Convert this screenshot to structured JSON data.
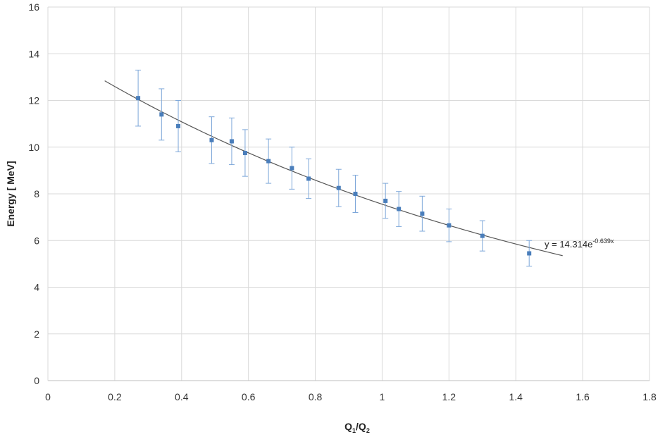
{
  "chart_data": {
    "type": "scatter",
    "xlabel": {
      "main": "Q",
      "sub1": "1",
      "sep": "/Q",
      "sub2": "2"
    },
    "ylabel": "Energy [ MeV]",
    "xlim": [
      0,
      1.8
    ],
    "ylim": [
      0,
      16
    ],
    "x_ticks": [
      "0",
      "0.2",
      "0.4",
      "0.6",
      "0.8",
      "1",
      "1.2",
      "1.4",
      "1.6",
      "1.8"
    ],
    "y_ticks": [
      "0",
      "2",
      "4",
      "6",
      "8",
      "10",
      "12",
      "14",
      "16"
    ],
    "grid": true,
    "marker_color": "#4a7ebb",
    "errorbar_color": "#7da7d9",
    "series": [
      {
        "points": [
          {
            "x": 0.27,
            "y": 12.1,
            "err": 1.2
          },
          {
            "x": 0.34,
            "y": 11.4,
            "err": 1.1
          },
          {
            "x": 0.39,
            "y": 10.9,
            "err": 1.1
          },
          {
            "x": 0.49,
            "y": 10.3,
            "err": 1.0
          },
          {
            "x": 0.55,
            "y": 10.25,
            "err": 1.0
          },
          {
            "x": 0.59,
            "y": 9.75,
            "err": 1.0
          },
          {
            "x": 0.66,
            "y": 9.4,
            "err": 0.95
          },
          {
            "x": 0.73,
            "y": 9.1,
            "err": 0.9
          },
          {
            "x": 0.78,
            "y": 8.65,
            "err": 0.85
          },
          {
            "x": 0.87,
            "y": 8.25,
            "err": 0.8
          },
          {
            "x": 0.92,
            "y": 8.0,
            "err": 0.8
          },
          {
            "x": 1.01,
            "y": 7.7,
            "err": 0.75
          },
          {
            "x": 1.05,
            "y": 7.35,
            "err": 0.75
          },
          {
            "x": 1.12,
            "y": 7.15,
            "err": 0.75
          },
          {
            "x": 1.2,
            "y": 6.65,
            "err": 0.7
          },
          {
            "x": 1.3,
            "y": 6.2,
            "err": 0.65
          },
          {
            "x": 1.44,
            "y": 5.45,
            "err": 0.55
          }
        ]
      }
    ],
    "trendline": {
      "type": "exponential",
      "a": 14.314,
      "b": -0.639,
      "x_range": [
        0.17,
        1.54
      ],
      "color": "#555555",
      "label": {
        "base": "y = 14.314e",
        "exponent": "-0.639x"
      }
    }
  }
}
